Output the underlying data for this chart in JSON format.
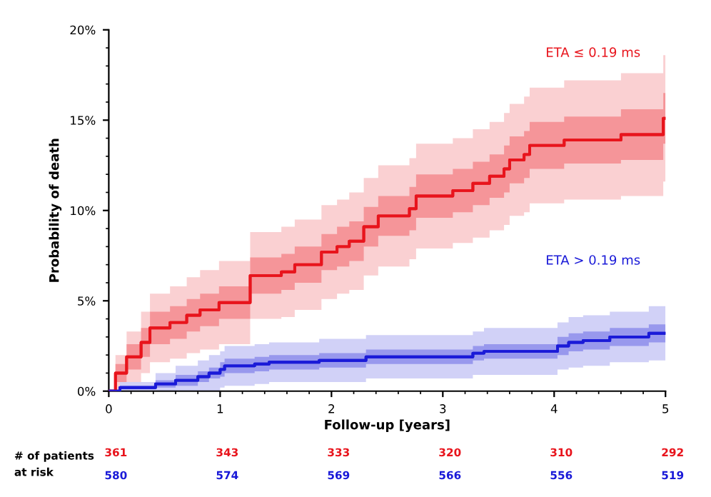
{
  "chart_data": {
    "type": "step",
    "xlabel": "Follow-up [years]",
    "ylabel": "Probability of death",
    "xlim": [
      0,
      5
    ],
    "xticks": [
      0,
      1,
      2,
      3,
      4,
      5
    ],
    "ylim": [
      0,
      20
    ],
    "yticks": [
      {
        "value": 0,
        "label": "0%"
      },
      {
        "value": 5,
        "label": "5%"
      },
      {
        "value": 10,
        "label": "10%"
      },
      {
        "value": 15,
        "label": "15%"
      },
      {
        "value": 20,
        "label": "20%"
      }
    ],
    "grid": false,
    "legend": false,
    "series": [
      {
        "color": "#e8141c",
        "x": [
          0,
          0.03,
          0.06,
          0.16,
          0.29,
          0.37,
          0.55,
          0.7,
          0.82,
          0.99,
          1.27,
          1.55,
          1.67,
          1.91,
          2.05,
          2.16,
          2.29,
          2.42,
          2.7,
          2.76,
          3.09,
          3.27,
          3.42,
          3.55,
          3.6,
          3.73,
          3.78,
          4.09,
          4.6,
          4.98,
          5.0
        ],
        "values": [
          0,
          0,
          1.0,
          1.9,
          2.7,
          3.5,
          3.8,
          4.2,
          4.5,
          4.9,
          6.4,
          6.6,
          7.0,
          7.7,
          8.0,
          8.3,
          9.1,
          9.7,
          10.1,
          10.8,
          11.1,
          11.5,
          11.9,
          12.3,
          12.8,
          13.1,
          13.6,
          13.9,
          14.2,
          15.1,
          15.1
        ],
        "lower": [
          0,
          0,
          0,
          0.5,
          1.0,
          1.6,
          1.8,
          2.1,
          2.3,
          2.6,
          4.0,
          4.1,
          4.5,
          5.1,
          5.4,
          5.6,
          6.4,
          6.9,
          7.3,
          7.9,
          8.2,
          8.5,
          8.9,
          9.2,
          9.7,
          9.9,
          10.4,
          10.6,
          10.8,
          11.6,
          11.6
        ],
        "upper": [
          0,
          0,
          2.0,
          3.3,
          4.4,
          5.4,
          5.8,
          6.3,
          6.7,
          7.2,
          8.8,
          9.1,
          9.5,
          10.3,
          10.6,
          11.0,
          11.8,
          12.5,
          12.9,
          13.7,
          14.0,
          14.5,
          14.9,
          15.4,
          15.9,
          16.3,
          16.8,
          17.2,
          17.6,
          18.6,
          18.6
        ]
      },
      {
        "color": "#1a1ad8",
        "x": [
          0,
          0.1,
          0.42,
          0.6,
          0.8,
          0.9,
          1.0,
          1.04,
          1.31,
          1.44,
          1.89,
          2.31,
          3.27,
          3.37,
          4.03,
          4.13,
          4.26,
          4.5,
          4.85,
          5.0
        ],
        "values": [
          0,
          0.2,
          0.4,
          0.6,
          0.8,
          1.0,
          1.2,
          1.4,
          1.5,
          1.6,
          1.7,
          1.9,
          2.1,
          2.2,
          2.5,
          2.7,
          2.8,
          3.0,
          3.2,
          3.2
        ],
        "lower": [
          0,
          0,
          0,
          0,
          0,
          0,
          0.2,
          0.3,
          0.4,
          0.5,
          0.5,
          0.7,
          0.9,
          0.9,
          1.2,
          1.3,
          1.4,
          1.6,
          1.7,
          1.7
        ],
        "upper": [
          0,
          0.5,
          1.0,
          1.4,
          1.7,
          2.0,
          2.2,
          2.5,
          2.6,
          2.7,
          2.9,
          3.1,
          3.3,
          3.5,
          3.8,
          4.1,
          4.2,
          4.4,
          4.7,
          4.7
        ]
      },
      {
        "name": "ETA ≤ 0.19 ms",
        "color": "#e8141c",
        "x": [
          0,
          0.03,
          0.06,
          0.16,
          0.29,
          0.37,
          0.55,
          0.7,
          0.82,
          0.99,
          1.27,
          1.55,
          1.67,
          1.91,
          2.05,
          2.16,
          2.29,
          2.42,
          2.7,
          2.76,
          3.09,
          3.27,
          3.42,
          3.55,
          3.6,
          3.73,
          3.78,
          4.09,
          4.6,
          4.98,
          5.0
        ],
        "values": [
          0,
          0,
          1.0,
          1.9,
          2.7,
          3.5,
          3.8,
          4.2,
          4.5,
          4.9,
          6.4,
          6.6,
          7.0,
          7.7,
          8.0,
          8.3,
          9.1,
          9.7,
          10.1,
          10.8,
          11.1,
          11.5,
          11.9,
          12.3,
          12.8,
          13.1,
          13.6,
          13.9,
          14.2,
          15.1,
          15.1
        ],
        "lower": [
          0,
          0,
          0.5,
          1.2,
          1.9,
          2.6,
          2.9,
          3.3,
          3.6,
          4.0,
          5.4,
          5.6,
          6.0,
          6.7,
          6.9,
          7.2,
          8.0,
          8.6,
          8.9,
          9.6,
          9.9,
          10.3,
          10.7,
          11.0,
          11.5,
          11.8,
          12.3,
          12.6,
          12.8,
          13.7,
          13.7
        ],
        "upper": [
          0,
          0,
          1.5,
          2.6,
          3.5,
          4.4,
          4.7,
          5.1,
          5.4,
          5.8,
          7.4,
          7.6,
          8.0,
          8.7,
          9.1,
          9.4,
          10.2,
          10.8,
          11.3,
          12.0,
          12.3,
          12.7,
          13.1,
          13.6,
          14.1,
          14.4,
          14.9,
          15.2,
          15.6,
          16.5,
          16.5
        ]
      },
      {
        "name": "ETA > 0.19 ms",
        "color": "#1a1ad8",
        "x": [
          0,
          0.1,
          0.42,
          0.6,
          0.8,
          0.9,
          1.0,
          1.04,
          1.31,
          1.44,
          1.89,
          2.31,
          3.27,
          3.37,
          4.03,
          4.13,
          4.26,
          4.5,
          4.85,
          5.0
        ],
        "values": [
          0,
          0.2,
          0.4,
          0.6,
          0.8,
          1.0,
          1.2,
          1.4,
          1.5,
          1.6,
          1.7,
          1.9,
          2.1,
          2.2,
          2.5,
          2.7,
          2.8,
          3.0,
          3.2,
          3.2
        ],
        "lower": [
          0,
          0.1,
          0.2,
          0.3,
          0.5,
          0.7,
          0.8,
          1.0,
          1.1,
          1.2,
          1.3,
          1.5,
          1.7,
          1.8,
          2.0,
          2.2,
          2.3,
          2.5,
          2.7,
          2.7
        ],
        "upper": [
          0,
          0.3,
          0.6,
          0.9,
          1.1,
          1.3,
          1.6,
          1.8,
          1.9,
          2.0,
          2.1,
          2.3,
          2.5,
          2.6,
          3.0,
          3.2,
          3.3,
          3.5,
          3.7,
          3.7
        ]
      }
    ],
    "annotations": [
      "# of patients\nat risk",
      "361",
      "343",
      "333",
      "320",
      "310",
      "292",
      "580",
      "574",
      "569",
      "566",
      "556",
      "519"
    ]
  }
}
